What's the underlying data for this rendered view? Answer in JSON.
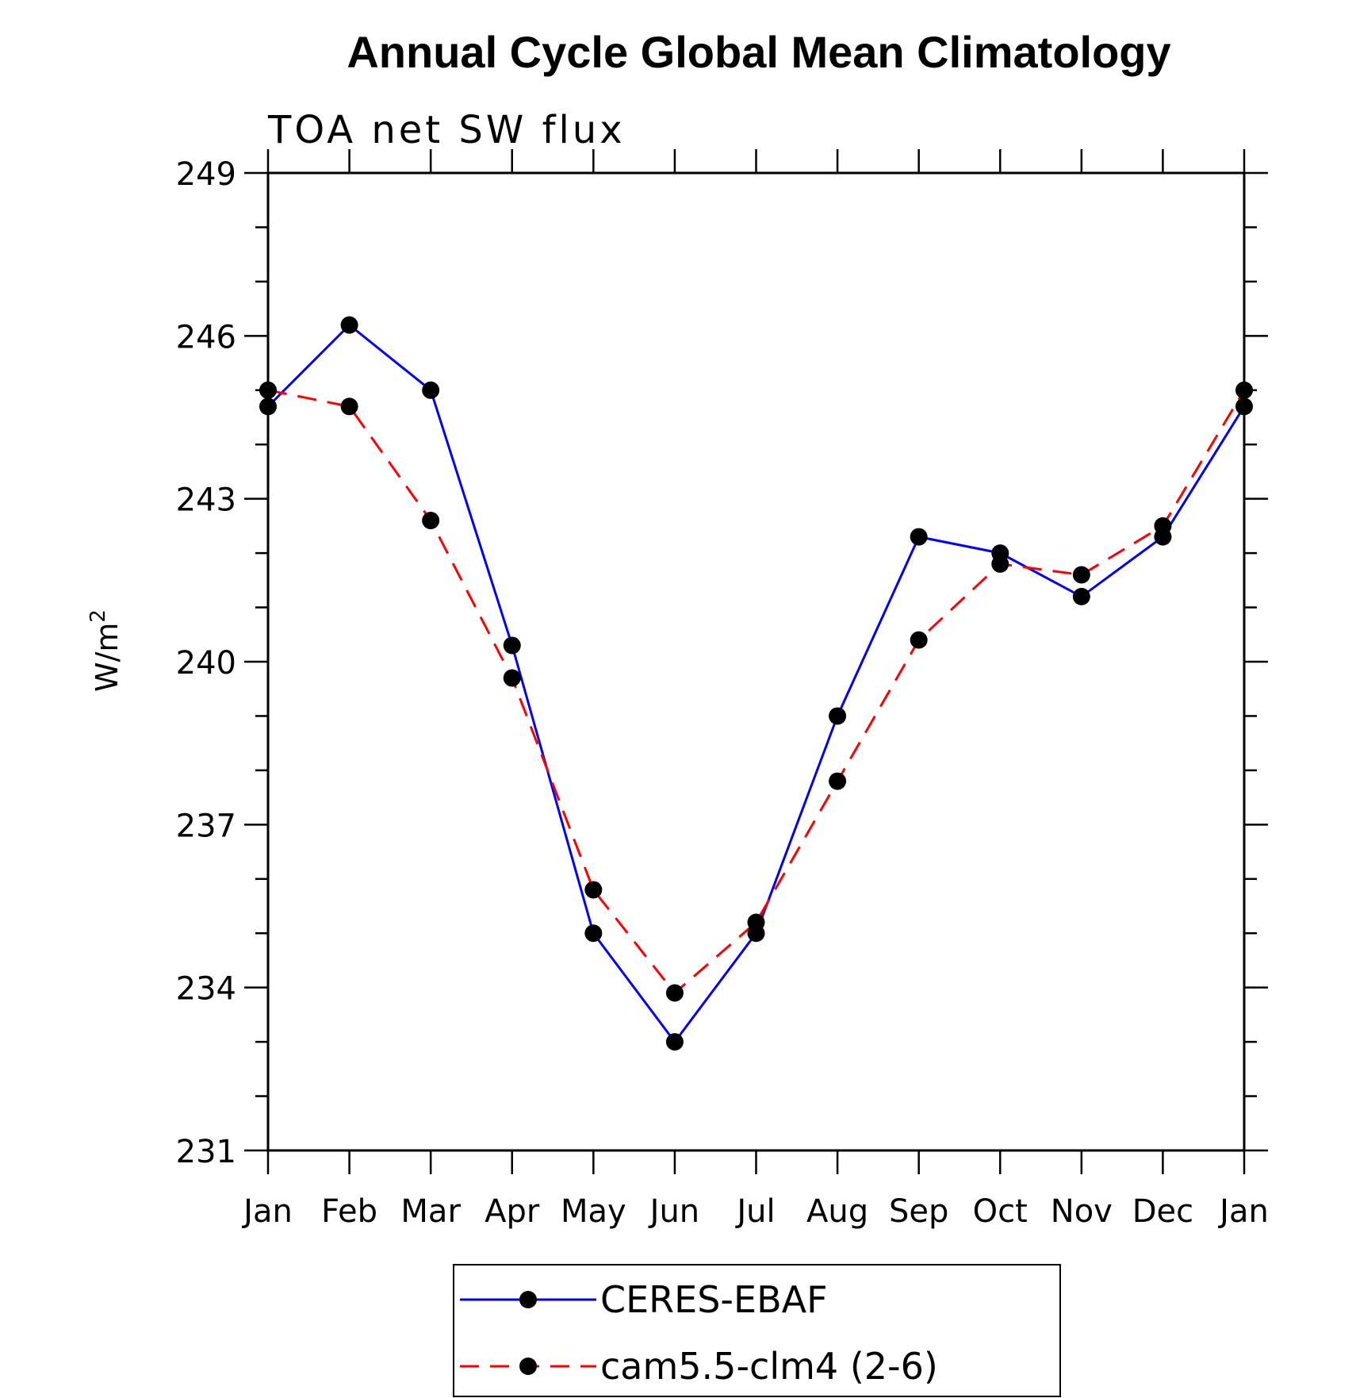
{
  "chart_data": {
    "type": "line",
    "title": "Annual Cycle Global Mean Climatology",
    "subtitle": "TOA net SW flux",
    "ylabel_base": "W/m",
    "ylabel_sup": "2",
    "xlabel": "",
    "categories": [
      "Jan",
      "Feb",
      "Mar",
      "Apr",
      "May",
      "Jun",
      "Jul",
      "Aug",
      "Sep",
      "Oct",
      "Nov",
      "Dec",
      "Jan"
    ],
    "ylim": [
      231,
      249
    ],
    "yticks": [
      231,
      234,
      237,
      240,
      243,
      246,
      249
    ],
    "yminor_step": 1,
    "grid": false,
    "legend_position": "bottom",
    "series": [
      {
        "name": "CERES-EBAF",
        "color": "#0000ff",
        "dash": "solid",
        "marker": "filled-circle",
        "values": [
          244.7,
          246.2,
          245.0,
          240.3,
          235.0,
          233.0,
          235.0,
          239.0,
          242.3,
          242.0,
          241.2,
          242.3,
          244.7
        ]
      },
      {
        "name": "cam5.5-clm4 (2-6)",
        "color": "#ff0000",
        "dash": "dashed",
        "marker": "filled-circle",
        "values": [
          245.0,
          244.7,
          242.6,
          239.7,
          235.8,
          233.9,
          235.2,
          237.8,
          240.4,
          241.8,
          241.6,
          242.5,
          245.0
        ]
      }
    ]
  }
}
